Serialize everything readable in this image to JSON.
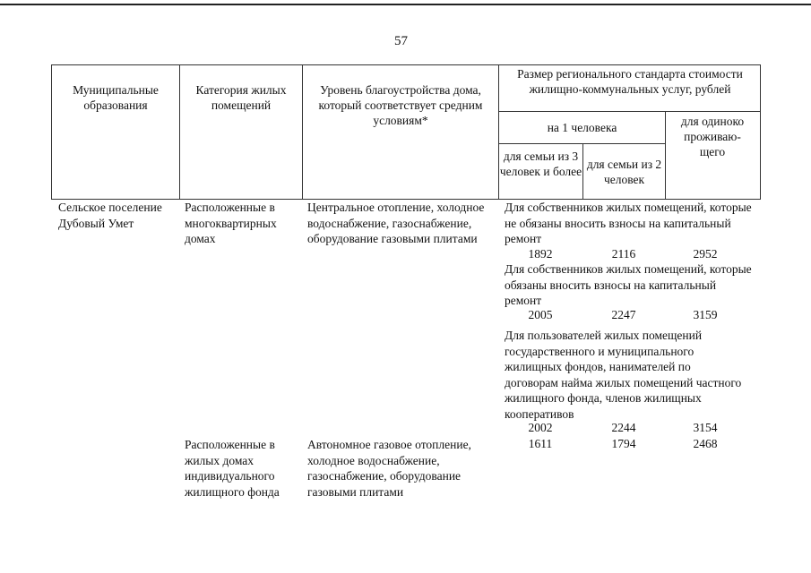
{
  "page_number": "57",
  "header": {
    "col1": "Муниципальные образования",
    "col2": "Категория жилых помещений",
    "col3": "Уровень благоустройства дома, который соответствует средним условиям*",
    "col4": "Размер регионального стандарта стоимости жилищно-коммунальных услуг, рублей",
    "per_person": "на 1 человека",
    "family3": "для семьи из 3 человек и более",
    "family2": "для семьи из 2 человек",
    "single": "для одиноко проживаю-щего"
  },
  "rows": [
    {
      "municipality": "Сельское поселение Дубовый Умет",
      "category": "Расположенные в многоквартирных домах",
      "amenities": "Центральное отопление, холодное водоснабжение, газоснабжение, оборудование газовыми плитами",
      "groups": [
        {
          "label": "Для собственников жилых помещений, которые не обязаны вносить взносы на капитальный ремонт",
          "values": [
            "1892",
            "2116",
            "2952"
          ]
        },
        {
          "label": "Для собственников  жилых помещений, которые обязаны вносить взносы на капитальный ремонт",
          "values": [
            "2005",
            "2247",
            "3159"
          ]
        },
        {
          "label": "Для пользователей жилых помещений государственного и муниципального жилищных фондов, нанимателей по договорам найма жилых помещений частного жилищного фонда, членов жилищных кооперативов",
          "values": [
            "2002",
            "2244",
            "3154"
          ]
        }
      ]
    },
    {
      "category": "Расположенные в жилых домах индивидуального жилищного фонда",
      "amenities": "Автономное газовое отопление, холодное водоснабжение, газоснабжение, оборудование газовыми плитами",
      "values": [
        "1611",
        "1794",
        "2468"
      ]
    }
  ]
}
